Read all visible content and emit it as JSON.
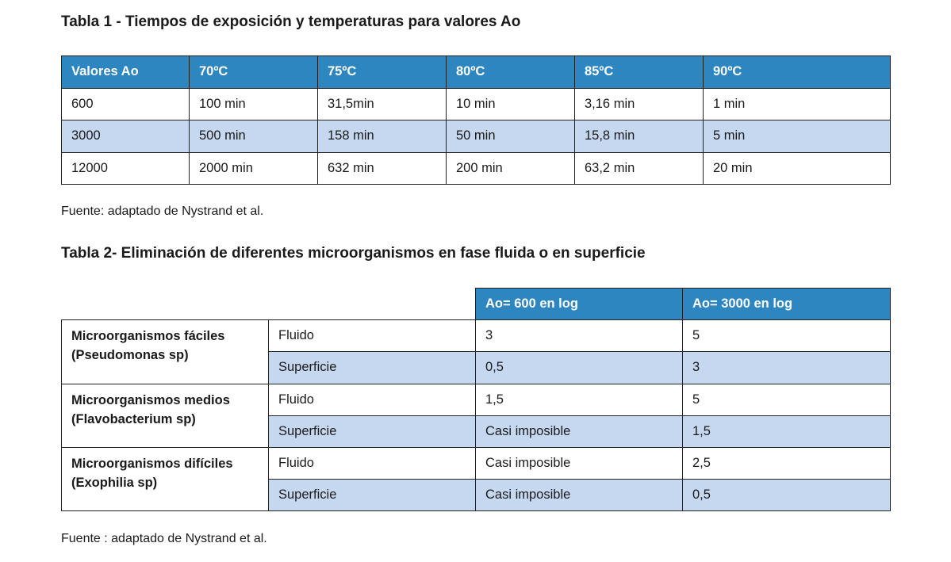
{
  "table1": {
    "title": "Tabla 1 - Tiempos de exposición y temperaturas para valores Ao",
    "headers": [
      "Valores Ao",
      "70ºC",
      "75ºC",
      "80ºC",
      "85ºC",
      "90ºC"
    ],
    "rows": [
      [
        "600",
        "100 min",
        "31,5min",
        "10 min",
        "3,16 min",
        "1 min"
      ],
      [
        "3000",
        "500 min",
        "158 min",
        "50 min",
        "15,8 min",
        "5 min"
      ],
      [
        "12000",
        "2000 min",
        "632 min",
        "200 min",
        "63,2 min",
        "20 min"
      ]
    ],
    "source": "Fuente: adaptado de Nystrand et al."
  },
  "table2": {
    "title": "Tabla 2- Eliminación de diferentes microorganismos en fase fluida o en superficie",
    "headers": [
      "Ao= 600 en log",
      "Ao= 3000 en log"
    ],
    "groups": [
      {
        "name_line1": "Microorganismos fáciles",
        "name_line2": "(Pseudomonas sp)",
        "rows": [
          {
            "phase": "Fluido",
            "ao600": "3",
            "ao3000": "5"
          },
          {
            "phase": "Superficie",
            "ao600": "0,5",
            "ao3000": "3"
          }
        ]
      },
      {
        "name_line1": "Microorganismos medios",
        "name_line2": "(Flavobacterium sp)",
        "rows": [
          {
            "phase": "Fluido",
            "ao600": "1,5",
            "ao3000": "5"
          },
          {
            "phase": "Superficie",
            "ao600": "Casi imposible",
            "ao3000": "1,5"
          }
        ]
      },
      {
        "name_line1": "Microorganismos difíciles",
        "name_line2": "(Exophilia sp)",
        "rows": [
          {
            "phase": "Fluido",
            "ao600": "Casi imposible",
            "ao3000": "2,5"
          },
          {
            "phase": "Superficie",
            "ao600": "Casi imposible",
            "ao3000": "0,5"
          }
        ]
      }
    ],
    "source": "Fuente : adaptado de Nystrand et al."
  },
  "colors": {
    "header_bg": "#2e86c1",
    "header_text": "#ffffff",
    "band_bg": "#c5d8ef",
    "border": "#222222"
  }
}
